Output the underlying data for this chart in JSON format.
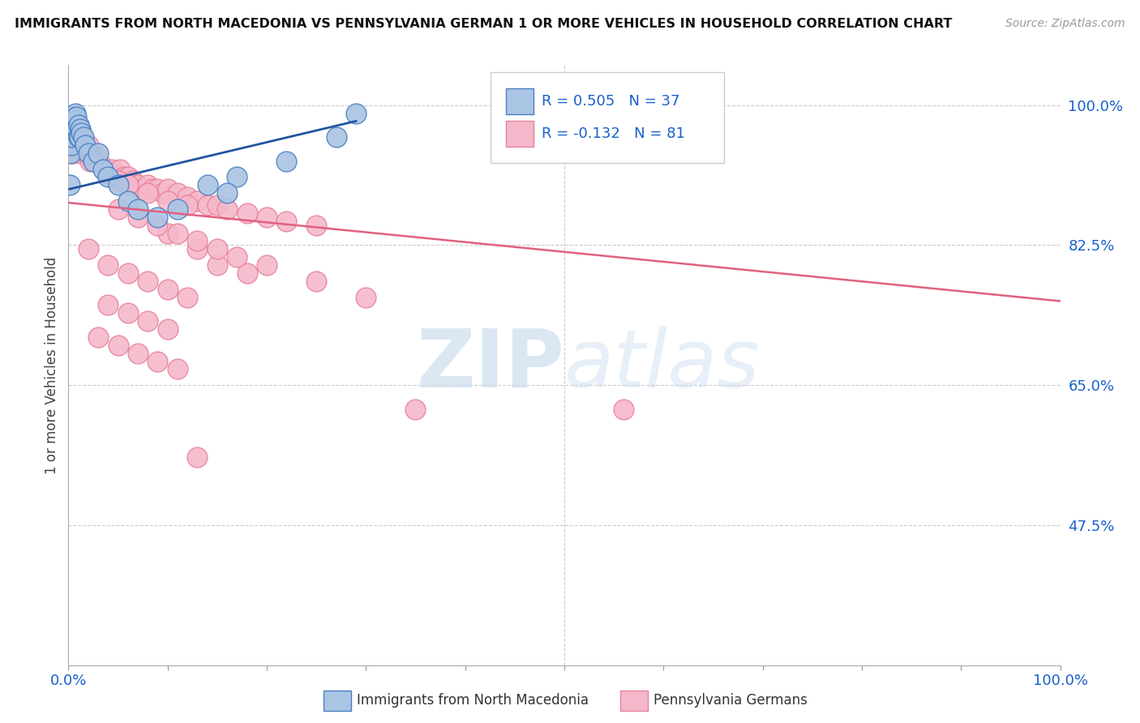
{
  "title": "IMMIGRANTS FROM NORTH MACEDONIA VS PENNSYLVANIA GERMAN 1 OR MORE VEHICLES IN HOUSEHOLD CORRELATION CHART",
  "source": "Source: ZipAtlas.com",
  "ylabel": "1 or more Vehicles in Household",
  "xlim": [
    0.0,
    1.0
  ],
  "ylim": [
    0.3,
    1.05
  ],
  "xtick_vals": [
    0.0,
    0.1,
    0.2,
    0.3,
    0.4,
    0.5,
    0.6,
    0.7,
    0.8,
    0.9,
    1.0
  ],
  "xtick_labels": [
    "0.0%",
    "",
    "",
    "",
    "",
    "",
    "",
    "",
    "",
    "",
    "100.0%"
  ],
  "ytick_vals": [
    1.0,
    0.825,
    0.65,
    0.475
  ],
  "ytick_labels": [
    "100.0%",
    "82.5%",
    "65.0%",
    "47.5%"
  ],
  "blue_R": 0.505,
  "blue_N": 37,
  "pink_R": -0.132,
  "pink_N": 81,
  "blue_color": "#aac4e4",
  "pink_color": "#f5b8ca",
  "blue_edge_color": "#4a7fc1",
  "pink_edge_color": "#e8829a",
  "blue_line_color": "#2255a0",
  "pink_line_color": "#e06080",
  "legend_label_blue": "Immigrants from North Macedonia",
  "legend_label_pink": "Pennsylvania Germans",
  "watermark_zip": "ZIP",
  "watermark_atlas": "atlas",
  "blue_scatter_x": [
    0.001,
    0.002,
    0.003,
    0.003,
    0.004,
    0.004,
    0.005,
    0.005,
    0.006,
    0.006,
    0.007,
    0.007,
    0.008,
    0.009,
    0.01,
    0.01,
    0.011,
    0.012,
    0.013,
    0.015,
    0.017,
    0.02,
    0.025,
    0.03,
    0.035,
    0.04,
    0.05,
    0.06,
    0.07,
    0.09,
    0.11,
    0.14,
    0.17,
    0.22,
    0.27,
    0.29,
    0.16
  ],
  "blue_scatter_y": [
    0.9,
    0.94,
    0.95,
    0.96,
    0.97,
    0.975,
    0.98,
    0.985,
    0.975,
    0.985,
    0.99,
    0.98,
    0.985,
    0.97,
    0.96,
    0.975,
    0.96,
    0.97,
    0.965,
    0.96,
    0.95,
    0.94,
    0.93,
    0.94,
    0.92,
    0.91,
    0.9,
    0.88,
    0.87,
    0.86,
    0.87,
    0.9,
    0.91,
    0.93,
    0.96,
    0.99,
    0.89
  ],
  "pink_scatter_x": [
    0.001,
    0.002,
    0.003,
    0.004,
    0.005,
    0.006,
    0.007,
    0.008,
    0.01,
    0.012,
    0.014,
    0.016,
    0.018,
    0.02,
    0.022,
    0.025,
    0.028,
    0.03,
    0.033,
    0.036,
    0.04,
    0.044,
    0.048,
    0.052,
    0.056,
    0.06,
    0.065,
    0.07,
    0.075,
    0.08,
    0.085,
    0.09,
    0.095,
    0.1,
    0.11,
    0.12,
    0.13,
    0.14,
    0.15,
    0.16,
    0.18,
    0.2,
    0.22,
    0.25,
    0.05,
    0.06,
    0.08,
    0.1,
    0.12,
    0.1,
    0.13,
    0.15,
    0.18,
    0.05,
    0.07,
    0.09,
    0.11,
    0.13,
    0.15,
    0.17,
    0.2,
    0.25,
    0.3,
    0.02,
    0.04,
    0.06,
    0.08,
    0.1,
    0.12,
    0.04,
    0.06,
    0.08,
    0.1,
    0.03,
    0.05,
    0.07,
    0.09,
    0.11,
    0.35,
    0.56,
    0.13
  ],
  "pink_scatter_y": [
    0.98,
    0.96,
    0.94,
    0.94,
    0.95,
    0.96,
    0.945,
    0.955,
    0.95,
    0.94,
    0.96,
    0.95,
    0.94,
    0.95,
    0.93,
    0.94,
    0.935,
    0.93,
    0.925,
    0.92,
    0.915,
    0.92,
    0.91,
    0.92,
    0.91,
    0.91,
    0.905,
    0.9,
    0.895,
    0.9,
    0.895,
    0.895,
    0.89,
    0.895,
    0.89,
    0.885,
    0.88,
    0.875,
    0.875,
    0.87,
    0.865,
    0.86,
    0.855,
    0.85,
    0.905,
    0.9,
    0.89,
    0.88,
    0.875,
    0.84,
    0.82,
    0.8,
    0.79,
    0.87,
    0.86,
    0.85,
    0.84,
    0.83,
    0.82,
    0.81,
    0.8,
    0.78,
    0.76,
    0.82,
    0.8,
    0.79,
    0.78,
    0.77,
    0.76,
    0.75,
    0.74,
    0.73,
    0.72,
    0.71,
    0.7,
    0.69,
    0.68,
    0.67,
    0.62,
    0.62,
    0.56
  ],
  "pink_line_x0": 0.0,
  "pink_line_y0": 0.878,
  "pink_line_x1": 1.0,
  "pink_line_y1": 0.755,
  "blue_line_x0": 0.001,
  "blue_line_y0": 0.895,
  "blue_line_x1": 0.29,
  "blue_line_y1": 0.98
}
